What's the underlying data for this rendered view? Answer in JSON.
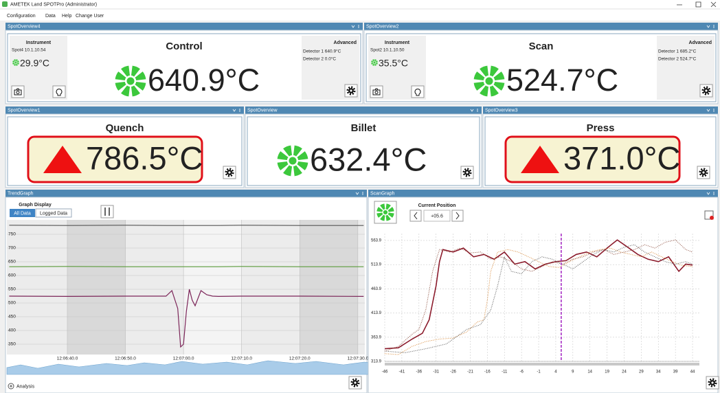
{
  "window": {
    "title": "AMETEK Land SPOTPro (Administrator)"
  },
  "menu": [
    "Configuration",
    "Data",
    "Help",
    "Change User"
  ],
  "spots": [
    {
      "panel": "SpotOverview4",
      "name": "Control",
      "instrument_label": "Instrument",
      "instrument": "Spot4  10.1.10.54",
      "temperature": "29.9°C",
      "value": "640.9°C",
      "advanced_label": "Advanced",
      "detectors": [
        "Detector 1  640.9°C",
        "Detector 2  0.0°C"
      ]
    },
    {
      "panel": "SpotOverview2",
      "name": "Scan",
      "instrument_label": "Instrument",
      "instrument": "Spot2  10.1.10.50",
      "temperature": "35.5°C",
      "value": "524.7°C",
      "advanced_label": "Advanced",
      "detectors": [
        "Detector 1  685.2°C",
        "Detector 2  524.7°C"
      ]
    }
  ],
  "overviews": [
    {
      "panel": "SpotOverview1",
      "name": "Quench",
      "value": "786.5°C",
      "alarm": true
    },
    {
      "panel": "SpotOverview",
      "name": "Billet",
      "value": "632.4°C",
      "alarm": false
    },
    {
      "panel": "SpotOverview3",
      "name": "Press",
      "value": "371.0°C",
      "alarm": true
    }
  ],
  "trend": {
    "panel": "TrendGraph",
    "graph_display": "Graph Display",
    "buttons": [
      "All Data",
      "Logged Data"
    ],
    "analysis": "Analysis",
    "chart": {
      "type": "line",
      "x": [
        "12:06:30.0",
        "12:06:40.0",
        "12:06:50.0",
        "12:06:57.0",
        "12:06:58.0",
        "12:06:59.0",
        "12:06:59.5",
        "12:07:00.0",
        "12:07:00.5",
        "12:07:01.0",
        "12:07:01.5",
        "12:07:02.0",
        "12:07:03.0",
        "12:07:04.0",
        "12:07:05.0",
        "12:07:06.0",
        "12:07:10.0",
        "12:07:20.0",
        "12:07:31.0"
      ],
      "series": [
        {
          "color": "#555555",
          "values": [
            783,
            782,
            783,
            782,
            782,
            782,
            782,
            782,
            782,
            782,
            782,
            782,
            782,
            782,
            782,
            782,
            783,
            782,
            782
          ]
        },
        {
          "color": "#5a9a3a",
          "values": [
            632,
            633,
            632,
            632,
            632,
            632,
            632,
            632,
            632,
            632,
            632,
            632,
            632,
            632,
            632,
            632,
            633,
            632,
            632
          ]
        },
        {
          "color": "#7b2458",
          "values": [
            525,
            524,
            525,
            525,
            545,
            480,
            340,
            350,
            470,
            550,
            510,
            490,
            545,
            530,
            525,
            524,
            525,
            525,
            524
          ]
        }
      ],
      "xlim": [
        "12:06:29.6",
        "12:07:31.2"
      ],
      "xticks": [
        "12:06:40.0",
        "12:06:50.0",
        "12:07:00.0",
        "12:07:10.0",
        "12:07:20.0",
        "12:07:30.0"
      ],
      "ylim": [
        312.5,
        802.5
      ],
      "yticks": [
        350,
        400,
        450,
        500,
        550,
        600,
        650,
        700,
        750
      ],
      "grid": true
    }
  },
  "scan": {
    "panel": "ScanGraph",
    "current_position_label": "Current Position",
    "current_position": {
      "value": 5.6,
      "label": "+05.6"
    },
    "chart": {
      "type": "line",
      "series": [
        {
          "color": "#8b1a2b",
          "style": "solid",
          "x": [
            -46,
            -42,
            -38,
            -35,
            -33,
            -31,
            -30,
            -29,
            -26,
            -23,
            -20,
            -17,
            -14,
            -11,
            -8,
            -5,
            -2,
            1,
            4,
            7,
            10,
            13,
            16,
            19,
            22,
            25,
            28,
            31,
            34,
            37,
            40,
            42,
            44
          ],
          "values": [
            340,
            342,
            360,
            372,
            400,
            470,
            520,
            545,
            540,
            548,
            530,
            535,
            525,
            540,
            515,
            520,
            505,
            515,
            520,
            522,
            535,
            540,
            530,
            548,
            565,
            550,
            535,
            525,
            520,
            530,
            500,
            515,
            513
          ]
        },
        {
          "color": "#d98a3a",
          "style": "dotted",
          "x": [
            -46,
            -42,
            -38,
            -34,
            -30,
            -26,
            -22,
            -19,
            -17,
            -16,
            -15,
            -13,
            -10,
            -7,
            -4,
            -1,
            2,
            5,
            8,
            11,
            14,
            17,
            20,
            23,
            26,
            29,
            32,
            35,
            38,
            41,
            44
          ],
          "values": [
            330,
            328,
            345,
            355,
            360,
            362,
            375,
            395,
            400,
            440,
            500,
            540,
            545,
            540,
            530,
            520,
            510,
            508,
            520,
            530,
            540,
            545,
            548,
            540,
            535,
            530,
            540,
            530,
            520,
            512,
            510
          ]
        },
        {
          "color": "#555555",
          "style": "dotted",
          "x": [
            -46,
            -40,
            -34,
            -28,
            -22,
            -18,
            -15,
            -13,
            -11,
            -9,
            -6,
            -3,
            0,
            3,
            6,
            9,
            12,
            15,
            18,
            21,
            24,
            27,
            30,
            33,
            36,
            39,
            42,
            44
          ],
          "values": [
            335,
            332,
            340,
            350,
            380,
            390,
            420,
            470,
            530,
            500,
            495,
            520,
            530,
            525,
            515,
            505,
            520,
            535,
            545,
            540,
            550,
            555,
            540,
            530,
            520,
            515,
            520,
            515
          ]
        },
        {
          "color": "#8b4a3a",
          "style": "dotted",
          "x": [
            -46,
            -42,
            -38,
            -36,
            -34,
            -32,
            -30,
            -27,
            -24,
            -21,
            -18,
            -15,
            -12,
            -9,
            -6,
            -3,
            0,
            3,
            6,
            9,
            12,
            15,
            18,
            21,
            24,
            27,
            30,
            33,
            36,
            39,
            42,
            44
          ],
          "values": [
            335,
            345,
            370,
            380,
            420,
            500,
            545,
            540,
            548,
            538,
            540,
            525,
            530,
            520,
            505,
            500,
            510,
            520,
            515,
            525,
            530,
            540,
            545,
            535,
            540,
            545,
            555,
            548,
            560,
            565,
            545,
            540
          ]
        }
      ],
      "xlim": [
        -46,
        46
      ],
      "xticks": [
        -46,
        -41,
        -36,
        -31,
        -26,
        -21,
        -16,
        -11,
        -6,
        -1,
        4,
        9,
        14,
        19,
        24,
        29,
        34,
        39,
        44
      ],
      "ylim": [
        313.9,
        578
      ],
      "yticks": [
        313.9,
        363.9,
        413.9,
        463.9,
        513.9,
        563.9
      ],
      "grid": true
    }
  }
}
